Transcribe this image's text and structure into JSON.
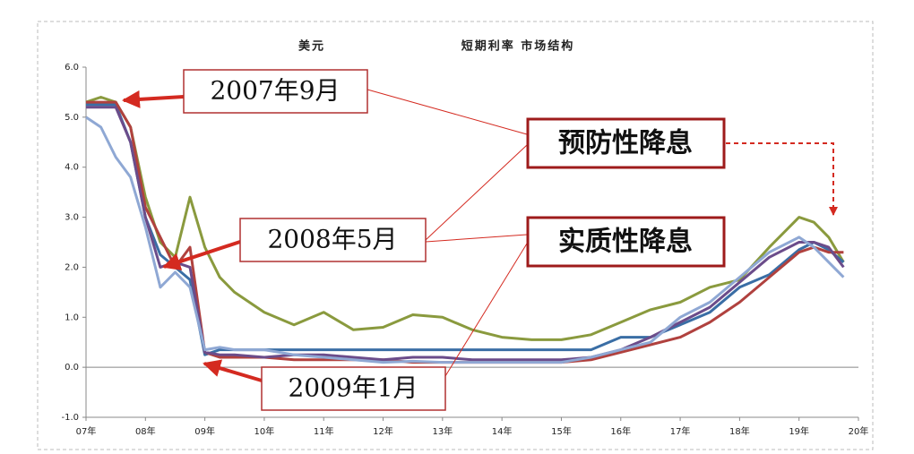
{
  "chart_data": {
    "type": "line",
    "title": "美元",
    "subtitle": "短期利率 市场结构",
    "x": [
      7,
      7.25,
      7.5,
      7.75,
      8,
      8.25,
      8.5,
      8.75,
      9,
      9.25,
      9.5,
      10,
      10.5,
      11,
      11.5,
      12,
      12.5,
      13,
      13.5,
      14,
      14.5,
      15,
      15.5,
      16,
      16.5,
      17,
      17.5,
      18,
      18.5,
      19,
      19.25,
      19.5,
      19.75
    ],
    "series": [
      {
        "color": "#8a9a3e",
        "values": [
          5.3,
          5.4,
          5.3,
          4.8,
          3.4,
          2.5,
          2.2,
          3.4,
          2.4,
          1.8,
          1.5,
          1.1,
          0.85,
          1.1,
          0.75,
          0.8,
          1.05,
          1.0,
          0.75,
          0.6,
          0.55,
          0.55,
          0.65,
          0.9,
          1.15,
          1.3,
          1.6,
          1.75,
          2.4,
          3.0,
          2.9,
          2.6,
          2.1
        ]
      },
      {
        "color": "#3a6ea5",
        "values": [
          5.25,
          5.25,
          5.25,
          4.5,
          3.0,
          2.25,
          2.0,
          1.75,
          0.25,
          0.35,
          0.35,
          0.35,
          0.35,
          0.35,
          0.35,
          0.35,
          0.35,
          0.35,
          0.35,
          0.35,
          0.35,
          0.35,
          0.35,
          0.6,
          0.6,
          0.85,
          1.1,
          1.6,
          1.85,
          2.35,
          2.5,
          2.35,
          2.1
        ]
      },
      {
        "color": "#b0413e",
        "values": [
          5.3,
          5.3,
          5.3,
          4.8,
          3.2,
          2.6,
          2.0,
          2.4,
          0.3,
          0.2,
          0.2,
          0.2,
          0.15,
          0.15,
          0.15,
          0.15,
          0.1,
          0.1,
          0.1,
          0.1,
          0.1,
          0.1,
          0.15,
          0.3,
          0.45,
          0.6,
          0.9,
          1.3,
          1.8,
          2.3,
          2.4,
          2.3,
          2.3
        ]
      },
      {
        "color": "#6b4c8a",
        "values": [
          5.2,
          5.2,
          5.2,
          4.5,
          3.0,
          2.0,
          2.1,
          2.0,
          0.3,
          0.25,
          0.25,
          0.2,
          0.25,
          0.25,
          0.2,
          0.15,
          0.2,
          0.2,
          0.15,
          0.15,
          0.15,
          0.15,
          0.2,
          0.35,
          0.6,
          0.9,
          1.2,
          1.7,
          2.2,
          2.5,
          2.5,
          2.4,
          2.0
        ]
      },
      {
        "color": "#8fa8d4",
        "values": [
          5.0,
          4.8,
          4.2,
          3.8,
          2.8,
          1.6,
          1.9,
          1.6,
          0.35,
          0.4,
          0.35,
          0.35,
          0.25,
          0.2,
          0.15,
          0.1,
          0.12,
          0.1,
          0.1,
          0.1,
          0.1,
          0.1,
          0.2,
          0.35,
          0.5,
          1.0,
          1.3,
          1.8,
          2.3,
          2.6,
          2.4,
          2.1,
          1.8
        ]
      }
    ],
    "xlim": [
      7,
      20
    ],
    "xticks": [
      {
        "value": 7,
        "label": "07年"
      },
      {
        "value": 8,
        "label": "08年"
      },
      {
        "value": 9,
        "label": "09年"
      },
      {
        "value": 10,
        "label": "10年"
      },
      {
        "value": 11,
        "label": "11年"
      },
      {
        "value": 12,
        "label": "12年"
      },
      {
        "value": 13,
        "label": "13年"
      },
      {
        "value": 14,
        "label": "14年"
      },
      {
        "value": 15,
        "label": "15年"
      },
      {
        "value": 16,
        "label": "16年"
      },
      {
        "value": 17,
        "label": "17年"
      },
      {
        "value": 18,
        "label": "18年"
      },
      {
        "value": 19,
        "label": "19年"
      },
      {
        "value": 20,
        "label": "20年"
      }
    ],
    "ylim": [
      -1,
      6
    ],
    "yticks": [
      {
        "value": -1,
        "label": "-1.0"
      },
      {
        "value": 0,
        "label": "0.0"
      },
      {
        "value": 1,
        "label": "1.0"
      },
      {
        "value": 2,
        "label": "2.0"
      },
      {
        "value": 3,
        "label": "3.0"
      },
      {
        "value": 4,
        "label": "4.0"
      },
      {
        "value": 5,
        "label": "5.0"
      },
      {
        "value": 6,
        "label": "6.0"
      }
    ],
    "annotations": [
      "2007年9月",
      "2008年5月",
      "2009年1月",
      "预防性降息",
      "实质性降息"
    ]
  }
}
